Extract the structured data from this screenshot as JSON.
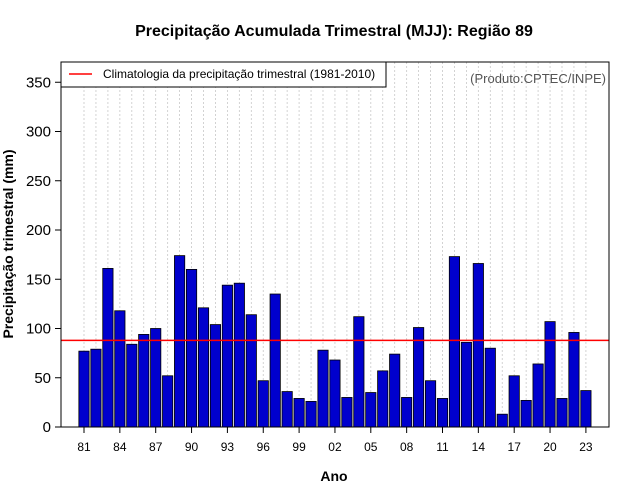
{
  "chart_data": {
    "type": "bar",
    "title": "Precipitação Acumulada Trimestral (MJJ): Região 89",
    "xlabel": "Ano",
    "ylabel": "Precipitação trimestral (mm)",
    "ylim": [
      0,
      375
    ],
    "yticks": [
      0,
      50,
      100,
      150,
      200,
      250,
      300,
      350
    ],
    "xtick_labels": [
      "81",
      "84",
      "87",
      "90",
      "93",
      "96",
      "99",
      "02",
      "05",
      "08",
      "11",
      "14",
      "17",
      "20",
      "23"
    ],
    "categories": [
      1981,
      1982,
      1983,
      1984,
      1985,
      1986,
      1987,
      1988,
      1989,
      1990,
      1991,
      1992,
      1993,
      1994,
      1995,
      1996,
      1997,
      1998,
      1999,
      2000,
      2001,
      2002,
      2003,
      2004,
      2005,
      2006,
      2007,
      2008,
      2009,
      2010,
      2011,
      2012,
      2013,
      2014,
      2015,
      2016,
      2017,
      2018,
      2019,
      2020,
      2021,
      2022,
      2023
    ],
    "values": [
      77,
      79,
      161,
      118,
      84,
      94,
      100,
      52,
      174,
      160,
      121,
      104,
      144,
      146,
      114,
      47,
      135,
      36,
      29,
      26,
      78,
      68,
      30,
      112,
      35,
      57,
      74,
      30,
      101,
      47,
      29,
      173,
      86,
      166,
      80,
      13,
      52,
      27,
      64,
      107,
      29,
      96,
      37
    ],
    "bar_color": "#0000cd",
    "climatology": {
      "value": 88,
      "color": "#ff0000",
      "label": "Climatologia da precipitação trimestral (1981-2010)"
    },
    "legend_position": "top-left",
    "grid": "vertical dotted",
    "credit": "(Produto:CPTEC/INPE)"
  }
}
